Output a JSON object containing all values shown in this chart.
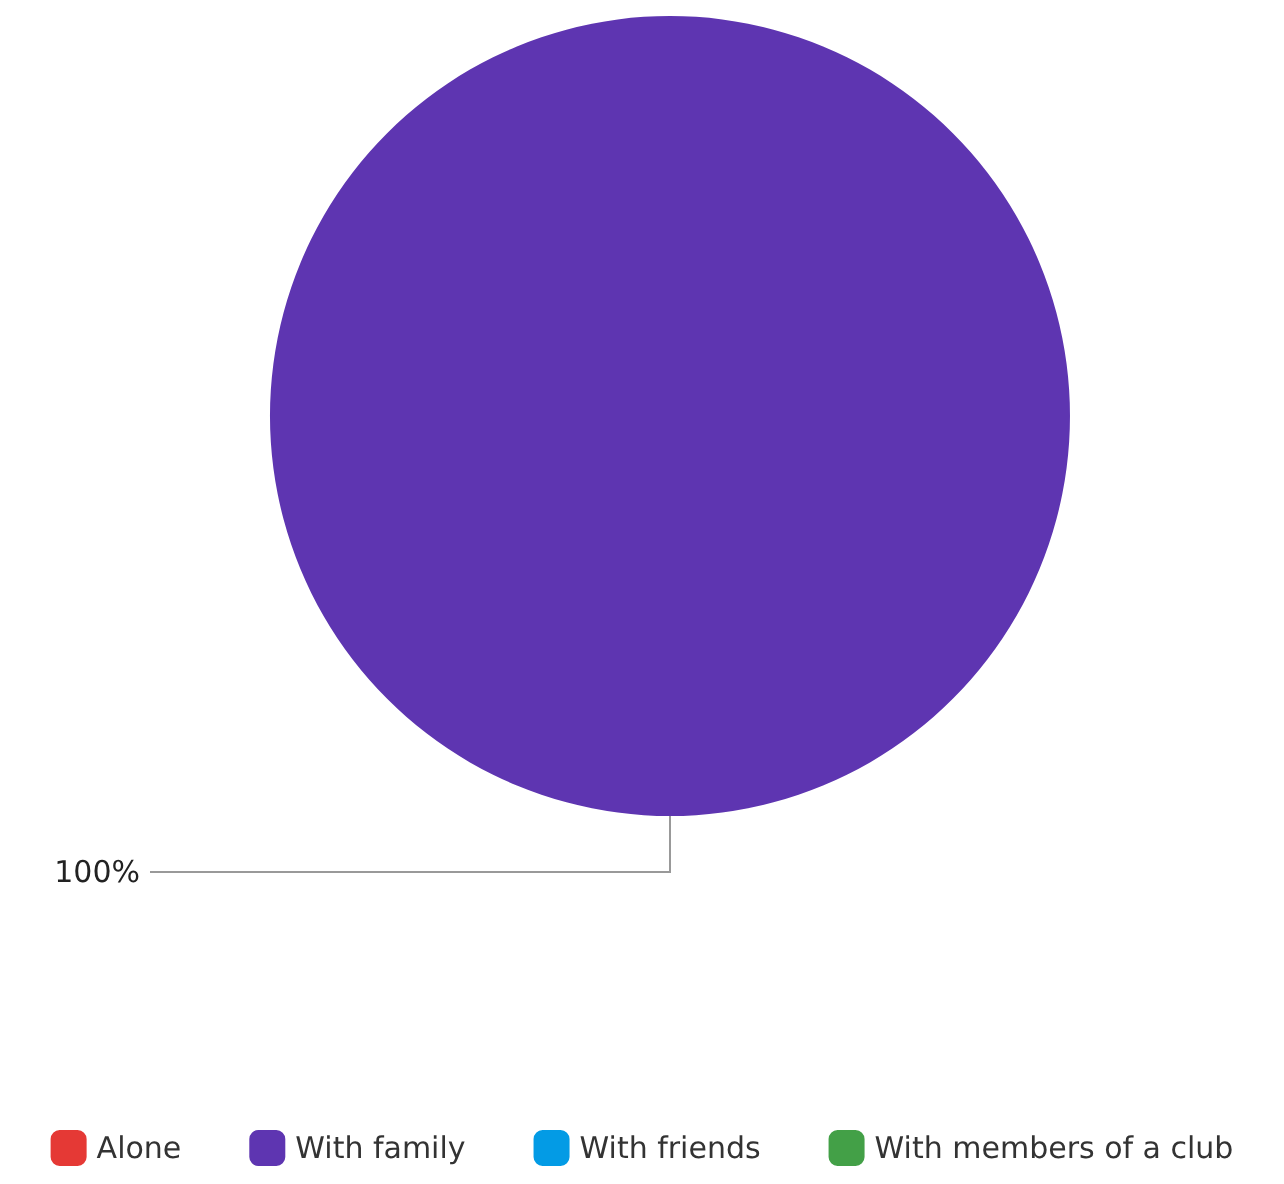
{
  "chart_data": {
    "type": "pie",
    "categories": [
      "Alone",
      "With family",
      "With friends",
      "With members of a club"
    ],
    "values": [
      0,
      100,
      0,
      0
    ],
    "colors": [
      "#e53935",
      "#5e35b1",
      "#039be5",
      "#43a047"
    ],
    "value_labels": [
      null,
      "100%",
      null,
      null
    ],
    "legend": "bottom"
  }
}
